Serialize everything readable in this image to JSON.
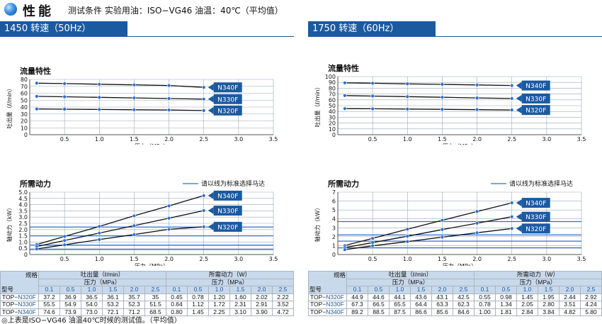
{
  "header": {
    "title": "性能",
    "subtitle": "测试条件 实验用油：ISO−VG46 油温：40℃（平均值）"
  },
  "panels": [
    {
      "title": "1450 转速（50Hz）",
      "flow_title": "流量特性",
      "power_title": "所需动力",
      "legend_text": "请以线为标准选择马达",
      "flow_ylabel": "吐出量（ℓ/min）",
      "power_ylabel": "轴动力（kW）",
      "xlabel": "压力（MPa）"
    },
    {
      "title": "1750 转速（60Hz）",
      "flow_title": "流量特性",
      "power_title": "所需动力",
      "legend_text": "请以线为标准选择马达",
      "flow_ylabel": "吐出量（ℓ/min）",
      "power_ylabel": "轴动力（kW）",
      "xlabel": "压力（MPa）"
    }
  ],
  "colors": {
    "accent": "#1c5aa0",
    "point": "#2b6fd6",
    "grid": "#9aa8b8",
    "motor_line": "#2c6fd0"
  },
  "tables": [
    {
      "corner_top": "规格",
      "corner_bottom": "型号",
      "flow_header": "吐出量（ℓ/min）",
      "power_header": "所需动力（W）",
      "pressure_label": "压力（MPa）",
      "pressures": [
        "0.1",
        "0.5",
        "1.0",
        "1.5",
        "2.0",
        "2.5"
      ],
      "rows": [
        {
          "prefix": "TOP−",
          "model": "N320F",
          "flow": [
            "37.2",
            "36.9",
            "36.5",
            "36.1",
            "35.7",
            "35"
          ],
          "power": [
            "0.45",
            "0.78",
            "1.20",
            "1.60",
            "2.02",
            "2.22"
          ]
        },
        {
          "prefix": "TOP−",
          "model": "N330F",
          "flow": [
            "55.5",
            "54.9",
            "54.0",
            "53.2",
            "52.3",
            "51.5"
          ],
          "power": [
            "0.64",
            "1.12",
            "1.72",
            "2.31",
            "2.91",
            "3.52"
          ]
        },
        {
          "prefix": "TOP−",
          "model": "N340F",
          "flow": [
            "74.6",
            "73.9",
            "73.0",
            "72.1",
            "71.2",
            "68.5"
          ],
          "power": [
            "0.80",
            "1.45",
            "2.25",
            "3.10",
            "3.90",
            "4.72"
          ]
        }
      ]
    },
    {
      "corner_top": "规格",
      "corner_bottom": "型号",
      "flow_header": "吐出量（ℓ/min）",
      "power_header": "所需动力（W）",
      "pressure_label": "压力（MPa）",
      "pressures": [
        "0.1",
        "0.5",
        "1.0",
        "1.5",
        "2.0",
        "2.5"
      ],
      "rows": [
        {
          "prefix": "TOP−",
          "model": "N320F",
          "flow": [
            "44.9",
            "44.6",
            "44.1",
            "43.6",
            "43.1",
            "42.5"
          ],
          "power": [
            "0.55",
            "0.98",
            "1.45",
            "1.95",
            "2.44",
            "2.92"
          ]
        },
        {
          "prefix": "TOP−",
          "model": "N330F",
          "flow": [
            "67.3",
            "66.5",
            "65.5",
            "64.4",
            "63.3",
            "62.3"
          ],
          "power": [
            "0.78",
            "1.34",
            "2.05",
            "2.80",
            "3.51",
            "4.24"
          ]
        },
        {
          "prefix": "TOP−",
          "model": "N340F",
          "flow": [
            "89.2",
            "88.5",
            "87.5",
            "86.6",
            "85.6",
            "84.6"
          ],
          "power": [
            "1.00",
            "1.81",
            "2.84",
            "3.84",
            "4.82",
            "5.80"
          ]
        }
      ]
    }
  ],
  "footer": "◎上表是ISO−VG46 油温40℃时候的测试值。（平均值）",
  "chart_data": [
    {
      "type": "line",
      "title": "流量特性",
      "xlabel": "压力（MPa）",
      "ylabel": "吐出量（ℓ/min）",
      "xlim": [
        0,
        3.5
      ],
      "ylim": [
        0,
        80
      ],
      "xticks": [
        "0.5",
        "1.0",
        "1.5",
        "2.0",
        "2.5",
        "3.0",
        "3.5"
      ],
      "yticks": [
        "0",
        "10",
        "20",
        "30",
        "40",
        "50",
        "60",
        "70",
        "80"
      ],
      "x": [
        0.1,
        0.5,
        1.0,
        1.5,
        2.0,
        2.5
      ],
      "series": [
        {
          "name": "N340F",
          "values": [
            74.6,
            73.9,
            73.0,
            72.1,
            71.2,
            68.5
          ]
        },
        {
          "name": "N330F",
          "values": [
            55.5,
            54.9,
            54.0,
            53.2,
            52.3,
            51.5
          ]
        },
        {
          "name": "N320F",
          "values": [
            37.2,
            36.9,
            36.5,
            36.1,
            35.7,
            35.0
          ]
        }
      ]
    },
    {
      "type": "line",
      "title": "所需动力",
      "xlabel": "压力（MPa）",
      "ylabel": "轴动力（kW）",
      "xlim": [
        0,
        3.5
      ],
      "ylim": [
        0,
        5.0
      ],
      "xticks": [
        "0.5",
        "1.0",
        "1.5",
        "2.0",
        "2.5",
        "3.0",
        "3.5"
      ],
      "yticks": [
        "0",
        "0.5",
        "1.0",
        "1.5",
        "2.0",
        "2.5",
        "3.0",
        "3.5",
        "4.0",
        "4.5",
        "5.0"
      ],
      "x": [
        0.1,
        0.5,
        1.0,
        1.5,
        2.0,
        2.5
      ],
      "motor_lines_kw": [
        0.4,
        0.75,
        1.5,
        2.2
      ],
      "legend": "请以线为标准选择马达",
      "series": [
        {
          "name": "N340F",
          "values": [
            0.8,
            1.45,
            2.25,
            3.1,
            3.9,
            4.72
          ]
        },
        {
          "name": "N330F",
          "values": [
            0.64,
            1.12,
            1.72,
            2.31,
            2.91,
            3.52
          ]
        },
        {
          "name": "N320F",
          "values": [
            0.45,
            0.78,
            1.2,
            1.6,
            2.02,
            2.22
          ]
        }
      ]
    },
    {
      "type": "line",
      "title": "流量特性",
      "xlabel": "压力（MPa）",
      "ylabel": "吐出量（ℓ/min）",
      "xlim": [
        0,
        3.5
      ],
      "ylim": [
        0,
        100
      ],
      "xticks": [
        "0.5",
        "1.0",
        "1.5",
        "2.0",
        "2.5",
        "3.0",
        "3.5"
      ],
      "yticks": [
        "0",
        "10",
        "20",
        "30",
        "40",
        "50",
        "60",
        "70",
        "80",
        "90",
        "100"
      ],
      "x": [
        0.1,
        0.5,
        1.0,
        1.5,
        2.0,
        2.5
      ],
      "series": [
        {
          "name": "N340F",
          "values": [
            89.2,
            88.5,
            87.5,
            86.6,
            85.6,
            84.6
          ]
        },
        {
          "name": "N330F",
          "values": [
            67.3,
            66.5,
            65.5,
            64.4,
            63.3,
            62.3
          ]
        },
        {
          "name": "N320F",
          "values": [
            44.9,
            44.6,
            44.1,
            43.6,
            43.1,
            42.5
          ]
        }
      ]
    },
    {
      "type": "line",
      "title": "所需动力",
      "xlabel": "压力（MPa）",
      "ylabel": "轴动力（kW）",
      "xlim": [
        0,
        3.5
      ],
      "ylim": [
        0,
        7
      ],
      "xticks": [
        "0.5",
        "1.0",
        "1.5",
        "2.0",
        "2.5",
        "3.0",
        "3.5"
      ],
      "yticks": [
        "0",
        "1",
        "2",
        "3",
        "4",
        "5",
        "6",
        "7"
      ],
      "x": [
        0.1,
        0.5,
        1.0,
        1.5,
        2.0,
        2.5
      ],
      "motor_lines_kw": [
        0.75,
        1.5,
        2.2,
        3.7
      ],
      "legend": "请以线为标准选择马达",
      "series": [
        {
          "name": "N340F",
          "values": [
            1.0,
            1.81,
            2.84,
            3.84,
            4.82,
            5.8
          ]
        },
        {
          "name": "N330F",
          "values": [
            0.78,
            1.34,
            2.05,
            2.8,
            3.51,
            4.24
          ]
        },
        {
          "name": "N320F",
          "values": [
            0.55,
            0.98,
            1.45,
            1.95,
            2.44,
            2.92
          ]
        }
      ]
    }
  ]
}
